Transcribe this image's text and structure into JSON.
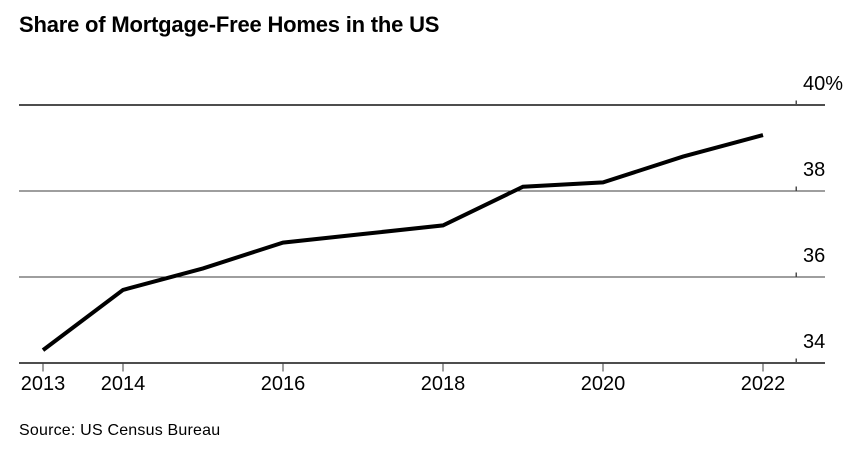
{
  "header": {
    "title": "Share of Mortgage-Free Homes in the US"
  },
  "footer": {
    "source": "Source: US Census Bureau"
  },
  "colors": {
    "background": "#ffffff",
    "text": "#000000",
    "line": "#000000",
    "grid_major": "#4d4d4d",
    "grid_minor": "#3c3c3c"
  },
  "chart_data": {
    "type": "line",
    "title": "Share of Mortgage-Free Homes in the US",
    "source": "Source: US Census Bureau",
    "x": [
      2013,
      2014,
      2015,
      2016,
      2017,
      2018,
      2019,
      2020,
      2021,
      2022
    ],
    "values": [
      34.3,
      35.7,
      36.2,
      36.8,
      37.0,
      37.2,
      38.1,
      38.2,
      38.8,
      39.3
    ],
    "xlabel": "",
    "ylabel": "",
    "ylim": [
      34,
      40
    ],
    "y_ticks": [
      34,
      36,
      38,
      40
    ],
    "y_tick_labels": [
      "34",
      "36",
      "38",
      "40%"
    ],
    "x_tick_years": [
      2013,
      2014,
      2016,
      2018,
      2020,
      2022
    ],
    "x_tick_labels": [
      "2013",
      "2014",
      "2016",
      "2018",
      "2020",
      "2022"
    ],
    "y_axis_side": "right",
    "grid": "horizontal",
    "legend": "none",
    "line_color": "#000000"
  }
}
